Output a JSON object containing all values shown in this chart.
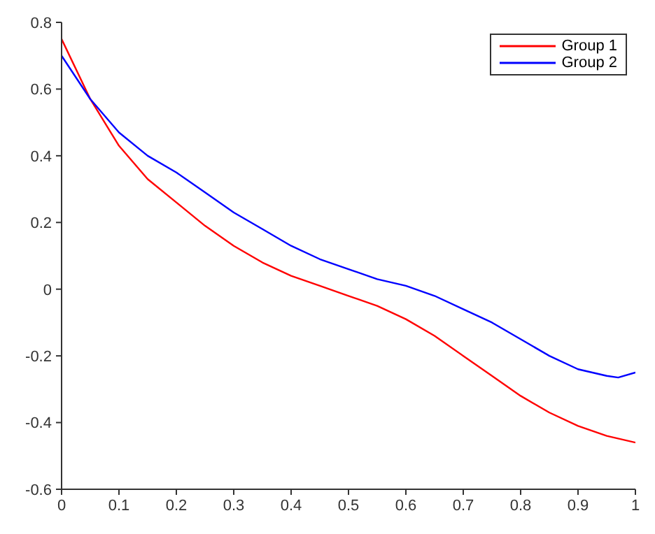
{
  "chart_data": {
    "type": "line",
    "xlim": [
      0,
      1
    ],
    "ylim": [
      -0.6,
      0.8
    ],
    "xticks": [
      0,
      0.1,
      0.2,
      0.3,
      0.4,
      0.5,
      0.6,
      0.7,
      0.8,
      0.9,
      1
    ],
    "yticks": [
      -0.6,
      -0.4,
      -0.2,
      0,
      0.2,
      0.4,
      0.6,
      0.8
    ],
    "grid": false,
    "legend": "top right",
    "marker": "none",
    "line_style": "solid",
    "series": [
      {
        "name": "Group 1",
        "color": "#ff0000",
        "x": [
          0,
          0.05,
          0.1,
          0.15,
          0.2,
          0.25,
          0.3,
          0.35,
          0.4,
          0.45,
          0.5,
          0.55,
          0.6,
          0.65,
          0.7,
          0.75,
          0.8,
          0.85,
          0.9,
          0.95,
          1
        ],
        "values": [
          0.75,
          0.57,
          0.43,
          0.33,
          0.26,
          0.19,
          0.13,
          0.08,
          0.04,
          0.01,
          -0.02,
          -0.05,
          -0.09,
          -0.14,
          -0.2,
          -0.26,
          -0.32,
          -0.37,
          -0.41,
          -0.44,
          -0.46
        ]
      },
      {
        "name": "Group 2",
        "color": "#0000ff",
        "x": [
          0,
          0.05,
          0.1,
          0.15,
          0.2,
          0.25,
          0.3,
          0.35,
          0.4,
          0.45,
          0.5,
          0.55,
          0.6,
          0.65,
          0.7,
          0.75,
          0.8,
          0.85,
          0.9,
          0.95,
          0.97,
          1
        ],
        "values": [
          0.7,
          0.57,
          0.47,
          0.4,
          0.35,
          0.29,
          0.23,
          0.18,
          0.13,
          0.09,
          0.06,
          0.03,
          0.01,
          -0.02,
          -0.06,
          -0.1,
          -0.15,
          -0.2,
          -0.24,
          -0.26,
          -0.265,
          -0.25
        ]
      }
    ]
  }
}
